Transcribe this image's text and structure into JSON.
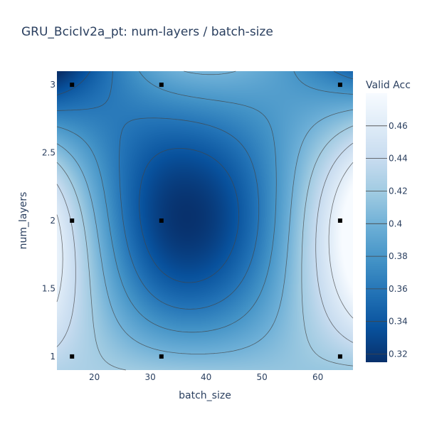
{
  "chart_data": {
    "type": "contour",
    "title": "GRU_BcicIv2a_pt: num-layers / batch-size",
    "xlabel": "batch_size",
    "ylabel": "num_layers",
    "xlim": [
      13.3,
      66.3
    ],
    "ylim": [
      0.9,
      3.1
    ],
    "x_ticks": [
      20,
      30,
      40,
      50,
      60
    ],
    "y_ticks": [
      1,
      1.5,
      2,
      2.5,
      3
    ],
    "y_tick_labels": [
      "1",
      "1.5",
      "2",
      "2.5",
      "3"
    ],
    "colorbar": {
      "title": "Valid Acc",
      "range": [
        0.315,
        0.48
      ],
      "ticks": [
        0.32,
        0.34,
        0.36,
        0.38,
        0.4,
        0.42,
        0.44,
        0.46
      ],
      "tick_labels": [
        "0.32",
        "0.34",
        "0.36",
        "0.38",
        "0.4",
        "0.42",
        "0.44",
        "0.46"
      ],
      "colorscale": "Blues",
      "colors": [
        "#08306b",
        "#08519c",
        "#2171b5",
        "#4292c6",
        "#6baed6",
        "#9ecae1",
        "#c6dbef",
        "#deebf7",
        "#f7fbff"
      ]
    },
    "contour_levels": [
      0.34,
      0.36,
      0.38,
      0.4,
      0.42,
      0.44,
      0.46
    ],
    "x": [
      16,
      32,
      64
    ],
    "y": [
      1,
      2,
      3
    ],
    "z": [
      [
        0.43,
        0.405,
        0.425
      ],
      [
        0.438,
        0.323,
        0.476
      ],
      [
        0.336,
        0.383,
        0.371
      ]
    ],
    "points": [
      {
        "batch_size": 16,
        "num_layers": 1
      },
      {
        "batch_size": 32,
        "num_layers": 1
      },
      {
        "batch_size": 64,
        "num_layers": 1
      },
      {
        "batch_size": 16,
        "num_layers": 2
      },
      {
        "batch_size": 32,
        "num_layers": 2
      },
      {
        "batch_size": 64,
        "num_layers": 2
      },
      {
        "batch_size": 16,
        "num_layers": 3
      },
      {
        "batch_size": 32,
        "num_layers": 3
      },
      {
        "batch_size": 64,
        "num_layers": 3
      }
    ]
  }
}
